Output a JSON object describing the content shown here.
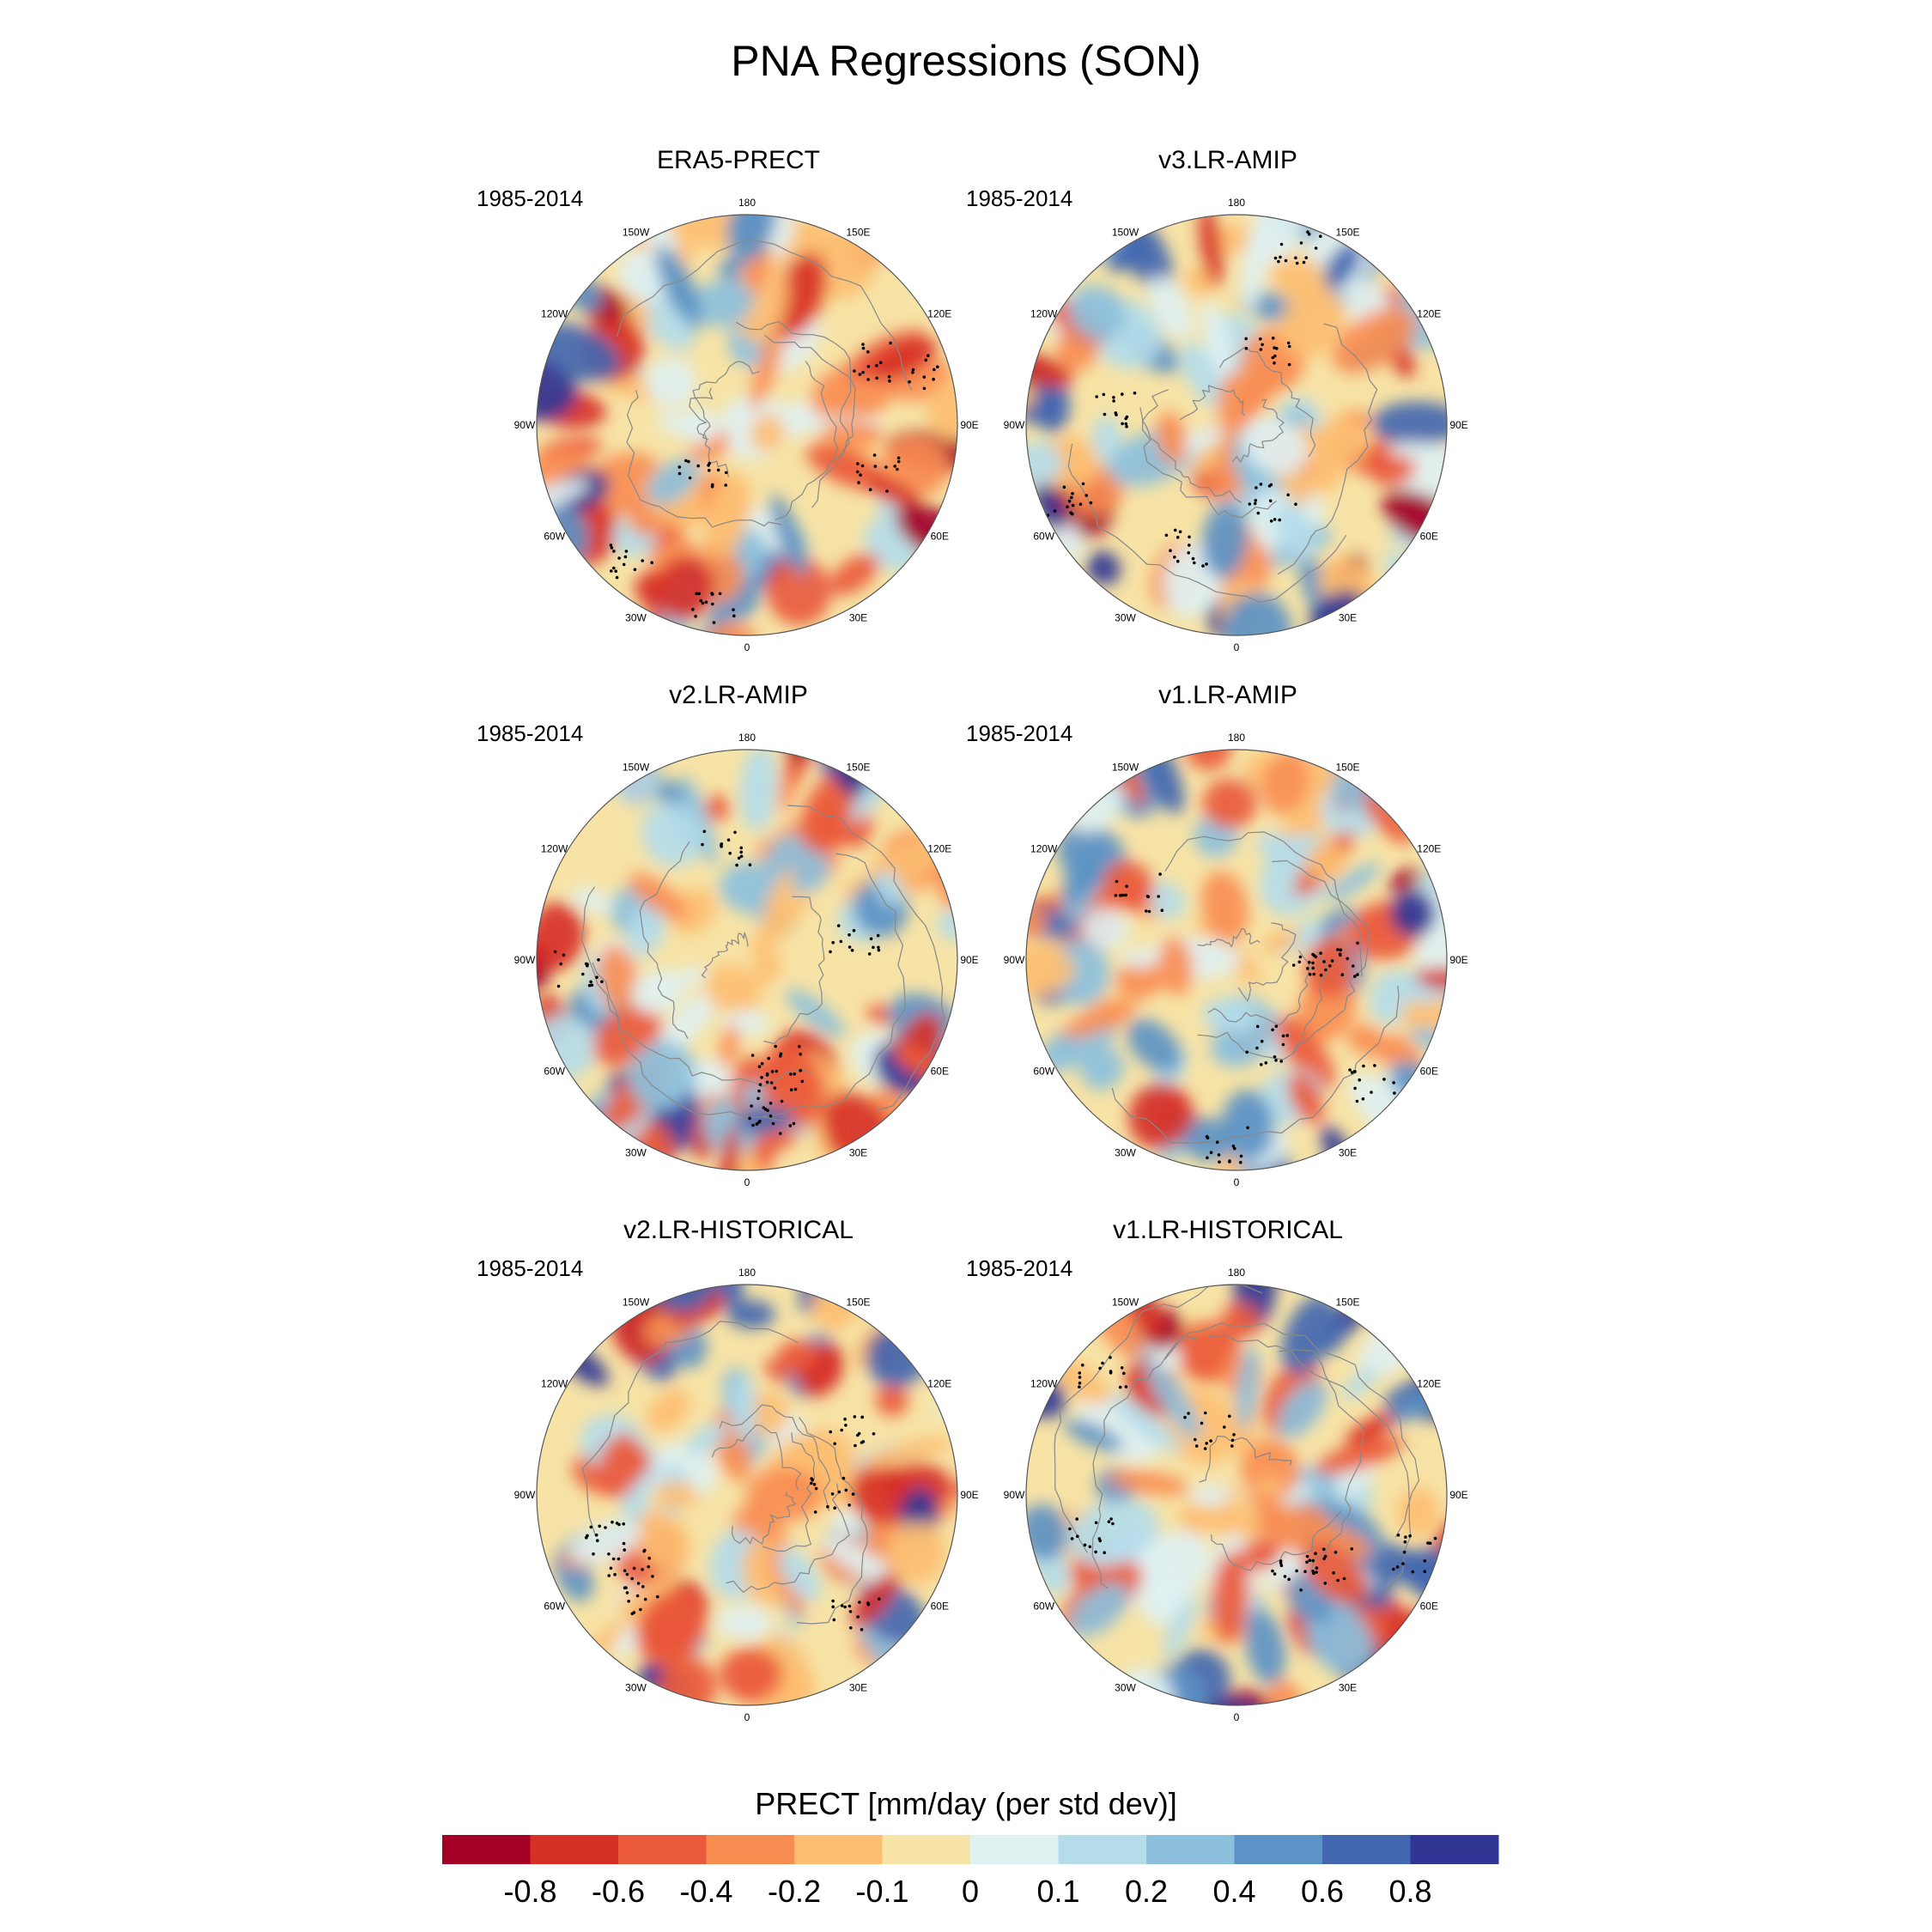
{
  "title": "PNA Regressions (SON)",
  "panels": [
    {
      "name": "ERA5-PRECT",
      "period": "1985-2014",
      "seed": 11
    },
    {
      "name": "v3.LR-AMIP",
      "period": "1985-2014",
      "seed": 23
    },
    {
      "name": "v2.LR-AMIP",
      "period": "1985-2014",
      "seed": 37
    },
    {
      "name": "v1.LR-AMIP",
      "period": "1985-2014",
      "seed": 41
    },
    {
      "name": "v2.LR-HISTORICAL",
      "period": "1985-2014",
      "seed": 53
    },
    {
      "name": "v1.LR-HISTORICAL",
      "period": "1985-2014",
      "seed": 67
    }
  ],
  "longitude_labels": [
    "180",
    "150E",
    "120E",
    "90E",
    "60E",
    "30E",
    "0",
    "30W",
    "60W",
    "90W",
    "120W",
    "150W"
  ],
  "colorbar": {
    "title": "PRECT [mm/day (per std dev)]",
    "tick_labels": [
      "-0.8",
      "-0.6",
      "-0.4",
      "-0.2",
      "-0.1",
      "0",
      "0.1",
      "0.2",
      "0.4",
      "0.6",
      "0.8"
    ],
    "colors": [
      "#a50026",
      "#d73027",
      "#ea5a3b",
      "#f88d52",
      "#fdbe71",
      "#f7e3a6",
      "#e0f1f2",
      "#b4dcea",
      "#8cc0dc",
      "#5c93c6",
      "#4367b0",
      "#313695"
    ]
  },
  "colors": {
    "coastline": "#888888",
    "stipple": "#000000",
    "frame": "#555555"
  }
}
